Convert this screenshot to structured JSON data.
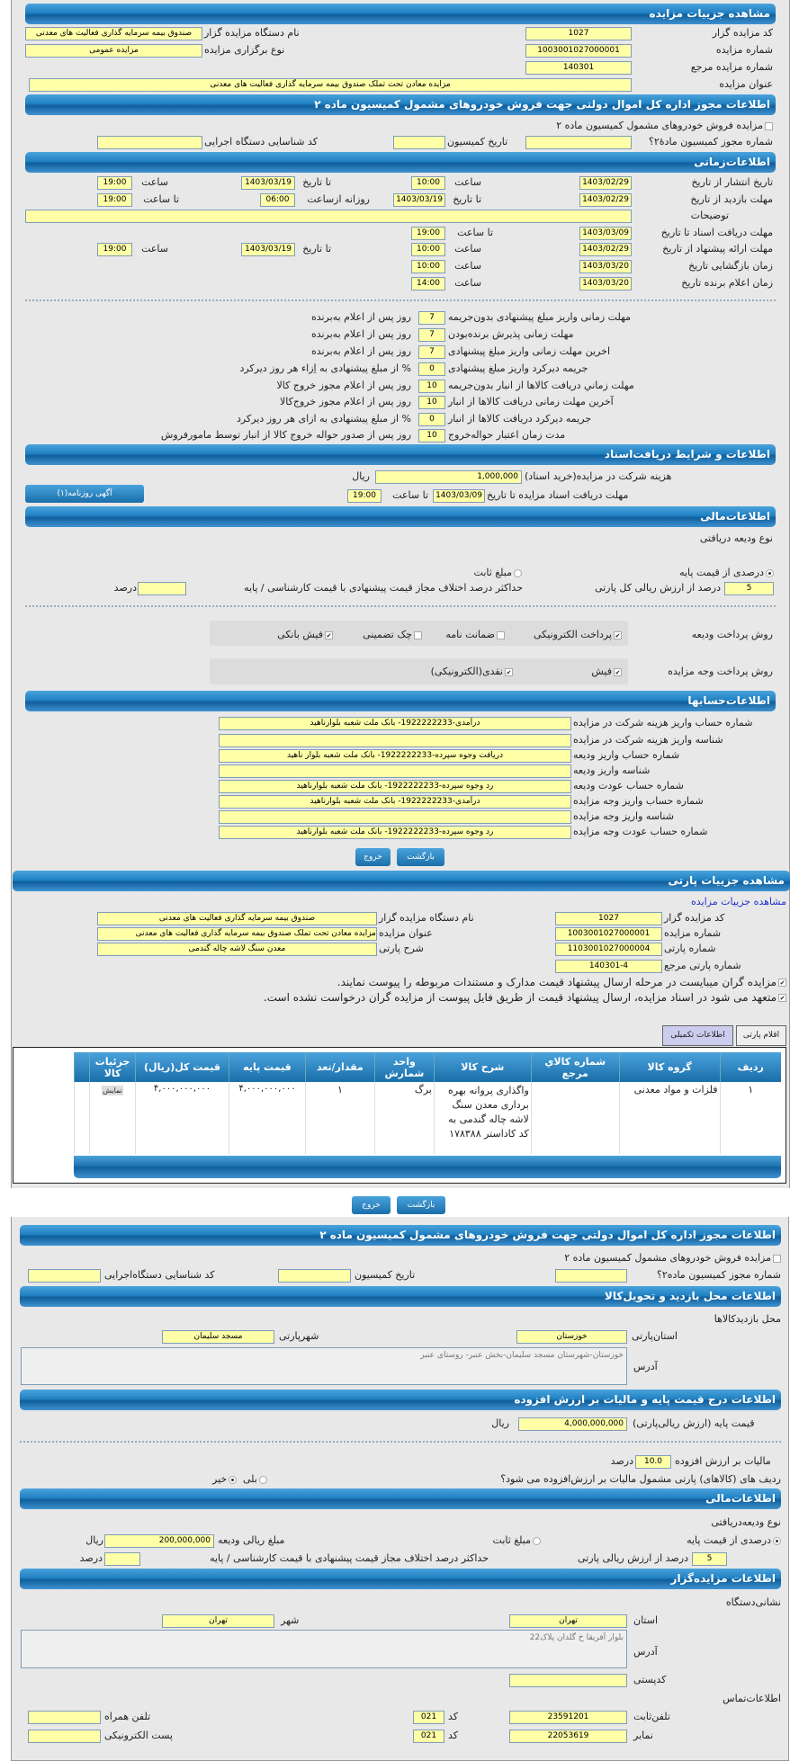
{
  "s1": {
    "title": "مشاهده جزییات مزایده",
    "code_label": "کد مزایده گزار",
    "code": "1027",
    "org_label": "نام دستگاه مزایده گزار",
    "org": "صندوق بیمه سرمایه گذاری فعالیت های معدنی",
    "num_label": "شماره مزایده",
    "num": "1003001027000001",
    "type_label": "نوع برگزاری مزایده",
    "type": "مزایده عمومی",
    "ref_label": "شماره مزایده مرجع",
    "ref": "140301",
    "title_label": "عنوان مزایده",
    "auction_title": "مزایده معادن تحت تملک صندوق بیمه سرمایه گذاری فعالیت های معدنی"
  },
  "s2": {
    "title": "اطلاعات مجوز اداره کل اموال دولتی جهت فروش خودروهای مشمول کمیسیون ماده ۲",
    "check_label": "مزایده فروش خودروهای مشمول کمیسیون ماده ۲",
    "permit_label": "شماره مجوز کمیسیون مادهٔ۲؟",
    "date_label": "تاریخ کمیسیون",
    "exec_label": "کد شناسایی دستگاه اجرایی"
  },
  "time": {
    "title": "اطلاعات‌زمانی",
    "publish_label": "تاریخ انتشار از تاریخ",
    "publish_from": "1403/02/29",
    "hour": "ساعت",
    "publish_time": "10:00",
    "to_date": "تا تاریخ",
    "publish_to": "1403/03/19",
    "publish_to_time": "19:00",
    "visit_label": "مهلت بازدید از تاریخ",
    "visit_from": "1403/02/29",
    "visit_to": "1403/03/19",
    "daily_from": "روزانه ازساعت",
    "daily_from_val": "06:00",
    "to_hour": "تا ساعت",
    "visit_to_time": "19:00",
    "desc_label": "توضیحات",
    "docs_label": "مهلت دریافت اسناد  تا تاریخ",
    "docs_date": "1403/03/09",
    "docs_time": "19:00",
    "offer_label": "مهلت ارائه پیشنهاد  از تاریخ",
    "offer_from": "1403/02/29",
    "offer_time": "10:00",
    "offer_to": "1403/03/19",
    "offer_to_time": "19:00",
    "open_label": "زمان بازگشایی    تاریخ",
    "open_date": "1403/03/20",
    "open_time": "10:00",
    "winner_label": "زمان اعلام برنده    تاریخ",
    "winner_date": "1403/03/20",
    "winner_time": "14:00"
  },
  "deadlines": [
    {
      "label": "مهلت زمانی واریز مبلغ پیشنهادی بدون‌جریمه",
      "value": "7",
      "suffix": "روز پس از اعلام به‌برنده"
    },
    {
      "label": "مهلت زمانی پذیرش برنده‌بودن",
      "value": "7",
      "suffix": "روز پس از اعلام به‌برنده"
    },
    {
      "label": "اخرین مهلت زمانی واریز مبلغ پیشنهادی",
      "value": "7",
      "suffix": "روز پس از اعلام به‌برنده"
    },
    {
      "label": "جریمه دیرکرد واریز مبلغ پیشنهادی",
      "value": "0",
      "suffix": "% از مبلغ پیشنهادی به اِزاء هر روز دیرکرد"
    },
    {
      "label": "مهلت زماني دريافت كالاها از انبار بدون‌جريمه",
      "value": "10",
      "suffix": "روز پس از اعلام مجوز خروج کالا"
    },
    {
      "label": "آخرین مهلت زمانی دریافت کالاها از انبار",
      "value": "10",
      "suffix": "روز پس از اعلام مجوز خروج‌کالا"
    },
    {
      "label": "جریمه دیرکرد دریافت کالاها از انبار",
      "value": "0",
      "suffix": "% از مبلغ پیشنهادی به ازای هر روز دیرکرد"
    },
    {
      "label": "مدت زمان اعتبار حواله‌خروج",
      "value": "10",
      "suffix": "روز پس از صدور حواله خروج کالا از انبار توسط مامورفروش"
    }
  ],
  "docs": {
    "title": "اطلاعات و شرایط دریافت‌اسناد",
    "fee_label": "هزینه شرکت در مزایده(خرید اسناد)",
    "fee": "1,000,000",
    "rial": "ریال",
    "deadline_label": "مهلت دریافت اسناد مزایده تا تاریخ",
    "deadline_date": "1403/03/09",
    "to_hour": "تا ساعت",
    "deadline_time": "19:00",
    "ad_button": "آگهی روزنامه(۱)"
  },
  "fin": {
    "title": "اطلاعات‌مالی",
    "type_label": "نوع ودیعه دریافتی",
    "opt_percent": "درصدی از قیمت پایه",
    "opt_fixed": "مبلغ ثابت",
    "percent": "5",
    "percent_label": "درصد از ارزش ریالی کل پارتی",
    "max_label": "حداکثر درصد اختلاف مجاز قیمت پیشنهادی با قیمت کارشناسی / پایه",
    "max_unit": "درصد",
    "deposit_method_label": "روش پرداخت ودیعه",
    "deposit_methods": [
      {
        "label": "پرداخت الکترونیکی",
        "checked": true
      },
      {
        "label": "ضمانت نامه",
        "checked": false
      },
      {
        "label": "چک تضمینی",
        "checked": false
      },
      {
        "label": "فیش بانکی",
        "checked": true
      }
    ],
    "payment_method_label": "روش پرداخت وجه مزایده",
    "payment_methods": [
      {
        "label": "فیش",
        "checked": true
      },
      {
        "label": "نقدی(الکترونیکی)",
        "checked": true
      }
    ]
  },
  "accounts": {
    "title": "اطلاعات‌حسابها",
    "rows": [
      {
        "label": "شماره حساب واریز هزینه شرکت در مزایده",
        "value": "درآمدی-1922222233- بانک ملت شعبه بلوارناهید"
      },
      {
        "label": "شناسه واریز هزینه شرکت در مزایده",
        "value": ""
      },
      {
        "label": "شماره حساب واریز ودیعه",
        "value": "دریافت وجوه سپرده-1922222233- بانک ملت شعبه بلوار ناهید"
      },
      {
        "label": "شناسه واریز ودیعه",
        "value": ""
      },
      {
        "label": "شماره حساب عودت ودیعه",
        "value": "رد وجوه سپرده-1922222233- بانک ملت شعبه بلوارناهید"
      },
      {
        "label": "شماره حساب واریز وجه مزایده",
        "value": "درآمدی-1922222233- بانک ملت شعبه بلوارناهید"
      },
      {
        "label": "شناسه واریز وجه مزایده",
        "value": ""
      },
      {
        "label": "شماره حساب عودت وجه مزایده",
        "value": "رد وجوه سپرده-1922222233- بانک ملت شعبه بلوارناهید"
      }
    ]
  },
  "buttons": {
    "back": "بازگشت",
    "exit": "خروج"
  },
  "party": {
    "title": "مشاهده جزییات پارتی",
    "link": "مشاهده جزییات مزایده",
    "code_label": "کد مزایده گزار",
    "code": "1027",
    "org_label": "نام دستگاه مزایده گزار",
    "org": "صندوق بیمه سرمایه گذاری فعالیت های معدنی",
    "num_label": "شماره مزایده",
    "num": "1003001027000001",
    "title_label": "عنوان مزایده",
    "auction_title": "مزایده معادن تحت تملک صندوق بیمه سرمایه گذاری فعالیت های معدنی",
    "party_label": "شماره پارتی",
    "party_num": "1103001027000004",
    "desc_label": "شرح پارتی",
    "desc": "معدن سنگ لاشه چاله گندمی",
    "ref_label": "شماره پارتی مرجع",
    "ref": "140301-4",
    "check1": "مزایده گران میبایست در مرحله ارسال پیشنهاد قیمت مدارک و مستندات مربوطه را پیوست نمایند.",
    "check2": "متعهد می شود در اسناد مزایده، ارسال پیشنهاد قیمت از طریق فایل پیوست از مزایده گران درخواست نشده است.",
    "tabs": [
      {
        "label": "اقلام پارتی",
        "active": false
      },
      {
        "label": "اطلاعات تکمیلی",
        "active": true
      }
    ]
  },
  "items": {
    "columns": [
      "ردیف",
      "گروه کالا",
      "شماره کالاي مرجع",
      "شرح کالا",
      "واحد شمارش",
      "مقدار/تعد",
      "قیمت پایه",
      "قیمت کل(ریال)",
      "جزئیات کالا"
    ],
    "rows": [
      {
        "row": "١",
        "group": "فلزات و مواد معدنی",
        "ref": "",
        "desc": "واگذاری پروانه بهره برداری معدن سنگ لاشه چاله گندمی به کد کاداستر ۱۷۸۳۸۸",
        "unit": "برگ",
        "qty": "١",
        "base": "۴,۰۰۰,۰۰۰,۰۰۰",
        "total": "۴,۰۰۰,۰۰۰,۰۰۰",
        "details": "نمایش"
      }
    ]
  },
  "s3": {
    "title": "اطلاعات مجوز اداره کل اموال دولتی جهت فروش خودروهای مشمول کمیسیون ماده ۲",
    "check_label": "مزایده فروش خودروهای مشمول کمیسیون ماده ۲",
    "permit_label": "شماره مجوز کمیسیون ماده۲؟",
    "date_label": "تاریخ کمیسیون",
    "exec_label": "کد شناسایی دستگاه‌اجرایی"
  },
  "visit": {
    "title": "اطلاعات محل بازدید و تحویل‌کالا",
    "place_label": "محل بازدیدکالاها",
    "province_label": "استان‌پارتی",
    "province": "خوزستان",
    "city_label": "شهرپارتی",
    "city": "مسجد سلیمان",
    "address_label": "آدرس",
    "address": "خوزستان-شهرستان مسجد سلیمان-بخش عنبر- روستای عنبر"
  },
  "price": {
    "title": "اطلاعات درج قیمت پایه و مالیات بر ارزش افزوده",
    "base_label": "قیمت پایه (ارزش ریالی‌پارتی)",
    "base": "4,000,000,000",
    "rial": "ریال",
    "vat_label": "مالیات بر ارزش افزوده",
    "vat": "10.0",
    "vat_unit": "درصد",
    "vat_q": "ردیف های (کالاهای) پارتی مشمول مالیات بر ارزش‌افزوده می شود؟",
    "yes": "بلی",
    "no": "خیر",
    "vat_applies": false
  },
  "fin2": {
    "title": "اطلاعات‌مالی",
    "type_label": "نوع ودیعه‌دریافتی",
    "opt_percent": "درصدی از قیمت پایه",
    "opt_fixed": "مبلغ ثابت",
    "deposit_label": "مبلغ ریالی ودیعه",
    "deposit": "200,000,000",
    "rial": "ریال",
    "percent": "5",
    "percent_label": "درصد از ارزش ریالی پارتی",
    "max_label": "حداکثر درصد اختلاف مجاز قیمت پیشنهادی با قیمت کارشناسی / پایه",
    "max_unit": "درصد"
  },
  "org": {
    "title": "اطلاعات مزایده‌گزار",
    "addr_title": "نشانی‌دستگاه",
    "province_label": "استان",
    "province": "تهران",
    "city_label": "شهر",
    "city": "تهران",
    "address_label": "آدرس",
    "address": "بلوار آفریقا خ گلدان پلاک22",
    "postal_label": "کدپستی",
    "contact_title": "اطلاعات‌تماس",
    "phone_label": "تلفن‌ثابت",
    "phone": "23591201",
    "code_label": "کد",
    "phone_code": "021",
    "mobile_label": "تلفن  همراه",
    "fax_label": "نمابر",
    "fax": "22053619",
    "fax_code": "021",
    "email_label": "پست الکترونیکی"
  },
  "colors": {
    "header": "#1f78b4",
    "input": "#ffffa8",
    "panel": "#e8e8e8"
  }
}
